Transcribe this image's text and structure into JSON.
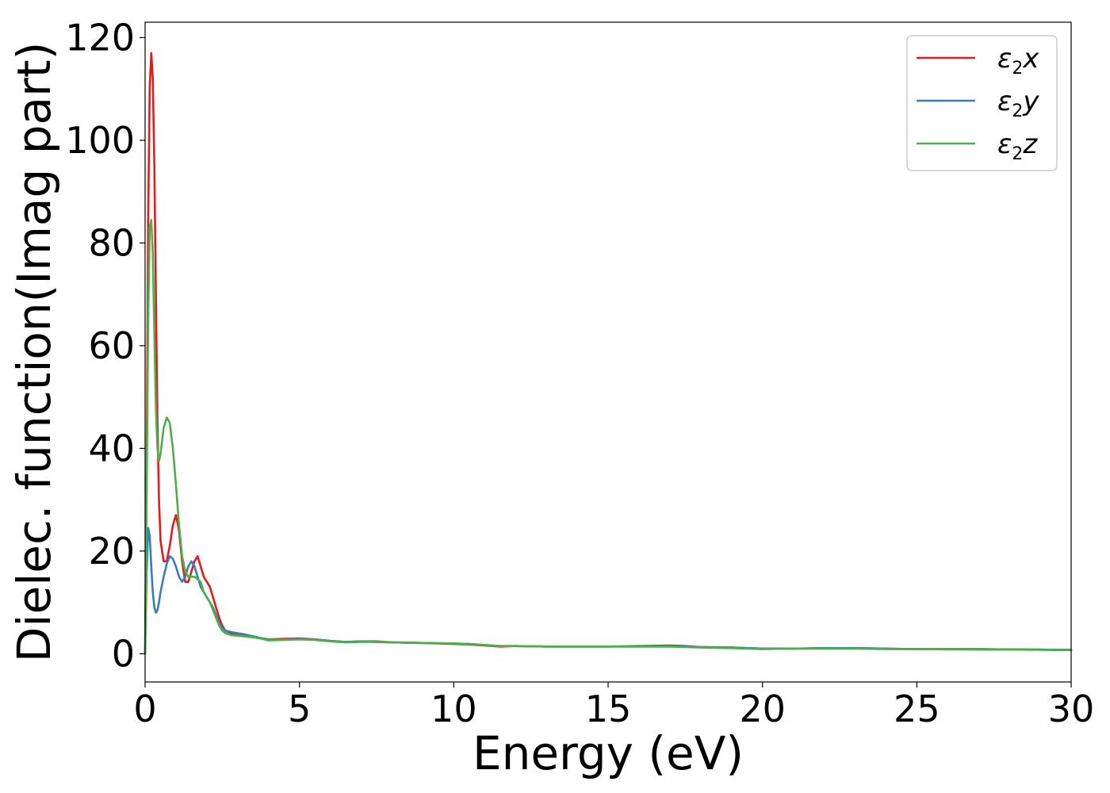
{
  "chart_data": {
    "type": "line",
    "xlabel": "Energy (eV)",
    "ylabel": "Dielec. function(Imag part)",
    "xlim": [
      0,
      30
    ],
    "ylim": [
      -5.5,
      123
    ],
    "xticks": [
      0,
      5,
      10,
      15,
      20,
      25,
      30
    ],
    "yticks": [
      0,
      20,
      40,
      60,
      80,
      100,
      120
    ],
    "grid": false,
    "legend_position": "top-right",
    "series": [
      {
        "name": "ε2x",
        "legend": {
          "base": "ε",
          "sub": "2",
          "var": "x"
        },
        "color": "#e41a1c",
        "x": [
          0,
          0.05,
          0.1,
          0.15,
          0.2,
          0.25,
          0.3,
          0.35,
          0.4,
          0.45,
          0.5,
          0.6,
          0.7,
          0.8,
          0.9,
          1.0,
          1.1,
          1.2,
          1.3,
          1.4,
          1.5,
          1.6,
          1.7,
          1.8,
          1.9,
          2.0,
          2.1,
          2.2,
          2.3,
          2.4,
          2.5,
          2.6,
          2.8,
          3.0,
          3.2,
          3.5,
          3.8,
          4.0,
          4.5,
          5.0,
          5.5,
          6.0,
          6.5,
          7.0,
          7.5,
          8.0,
          9.0,
          10.0,
          10.5,
          11.0,
          11.5,
          12.0,
          13.0,
          14.0,
          15.0,
          16.0,
          17.0,
          17.5,
          18.0,
          19.0,
          20.0,
          21.0,
          22.0,
          23.0,
          24.0,
          25.0,
          26.0,
          27.0,
          28.0,
          29.0,
          30.0
        ],
        "values": [
          0,
          35,
          85,
          110,
          117,
          112,
          95,
          70,
          45,
          30,
          22,
          18,
          18,
          21,
          25,
          27,
          24,
          18,
          14,
          14,
          16,
          18,
          19,
          17,
          15,
          14,
          13,
          11,
          9,
          7,
          5.5,
          4.5,
          4,
          3.8,
          3.6,
          3.3,
          3.0,
          2.8,
          2.9,
          3.0,
          2.8,
          2.5,
          2.3,
          2.4,
          2.4,
          2.2,
          2.1,
          1.9,
          1.8,
          1.6,
          1.4,
          1.5,
          1.4,
          1.4,
          1.4,
          1.5,
          1.6,
          1.5,
          1.3,
          1.2,
          1.0,
          1.0,
          1.1,
          1.1,
          1.0,
          0.9,
          0.9,
          0.9,
          0.85,
          0.8,
          0.75
        ]
      },
      {
        "name": "ε2y",
        "legend": {
          "base": "ε",
          "sub": "2",
          "var": "y"
        },
        "color": "#377eb8",
        "x": [
          0,
          0.05,
          0.1,
          0.15,
          0.2,
          0.25,
          0.3,
          0.35,
          0.4,
          0.45,
          0.5,
          0.6,
          0.7,
          0.8,
          0.9,
          1.0,
          1.1,
          1.2,
          1.3,
          1.4,
          1.5,
          1.6,
          1.7,
          1.8,
          1.9,
          2.0,
          2.1,
          2.2,
          2.3,
          2.4,
          2.5,
          2.6,
          2.8,
          3.0,
          3.2,
          3.5,
          3.8,
          4.0,
          4.5,
          5.0,
          5.5,
          6.0,
          6.5,
          7.0,
          7.5,
          8.0,
          9.0,
          10.0,
          10.5,
          11.0,
          11.5,
          12.0,
          13.0,
          14.0,
          15.0,
          16.0,
          17.0,
          17.5,
          18.0,
          19.0,
          20.0,
          21.0,
          22.0,
          23.0,
          24.0,
          25.0,
          26.0,
          27.0,
          28.0,
          29.0,
          30.0
        ],
        "values": [
          0,
          16,
          24.5,
          23,
          17,
          12,
          9,
          8,
          8.5,
          10,
          12,
          15,
          17.5,
          19,
          18.5,
          17,
          15,
          14,
          15,
          17,
          18,
          17,
          15,
          13,
          12,
          11,
          10,
          9,
          7.5,
          6,
          5,
          4.5,
          4.2,
          4.0,
          3.8,
          3.4,
          3.0,
          2.8,
          2.8,
          2.9,
          2.8,
          2.5,
          2.3,
          2.4,
          2.3,
          2.2,
          2.1,
          2.0,
          1.9,
          1.7,
          1.5,
          1.5,
          1.4,
          1.4,
          1.4,
          1.4,
          1.4,
          1.4,
          1.3,
          1.2,
          1.0,
          1.0,
          1.1,
          1.1,
          1.0,
          0.9,
          0.9,
          0.9,
          0.85,
          0.8,
          0.75
        ]
      },
      {
        "name": "ε2z",
        "legend": {
          "base": "ε",
          "sub": "2",
          "var": "z"
        },
        "color": "#4daf4a",
        "x": [
          0,
          0.05,
          0.1,
          0.15,
          0.2,
          0.25,
          0.3,
          0.35,
          0.4,
          0.45,
          0.5,
          0.6,
          0.7,
          0.8,
          0.9,
          1.0,
          1.1,
          1.2,
          1.3,
          1.4,
          1.5,
          1.6,
          1.7,
          1.8,
          1.9,
          2.0,
          2.1,
          2.2,
          2.3,
          2.4,
          2.5,
          2.6,
          2.8,
          3.0,
          3.2,
          3.5,
          3.8,
          4.0,
          4.5,
          5.0,
          5.5,
          6.0,
          6.5,
          7.0,
          7.5,
          8.0,
          9.0,
          10.0,
          10.5,
          11.0,
          11.5,
          12.0,
          13.0,
          14.0,
          15.0,
          16.0,
          17.0,
          17.5,
          18.0,
          19.0,
          20.0,
          21.0,
          22.0,
          23.0,
          24.0,
          25.0,
          26.0,
          27.0,
          28.0,
          29.0,
          30.0
        ],
        "values": [
          0,
          30,
          65,
          83,
          84.5,
          78,
          62,
          48,
          40,
          37.5,
          39,
          44,
          46,
          45,
          40,
          33,
          25,
          19,
          16,
          15,
          15,
          15,
          14.5,
          14,
          12,
          11,
          10,
          8.5,
          7,
          5.5,
          4.5,
          4,
          3.6,
          3.5,
          3.4,
          3.2,
          2.9,
          2.6,
          2.7,
          2.8,
          2.7,
          2.4,
          2.2,
          2.3,
          2.3,
          2.2,
          2.1,
          2.0,
          1.9,
          1.7,
          1.5,
          1.5,
          1.4,
          1.4,
          1.4,
          1.4,
          1.4,
          1.3,
          1.2,
          1.1,
          0.9,
          1.0,
          1.0,
          1.0,
          0.9,
          0.9,
          0.85,
          0.8,
          0.8,
          0.75,
          0.7
        ]
      }
    ]
  }
}
